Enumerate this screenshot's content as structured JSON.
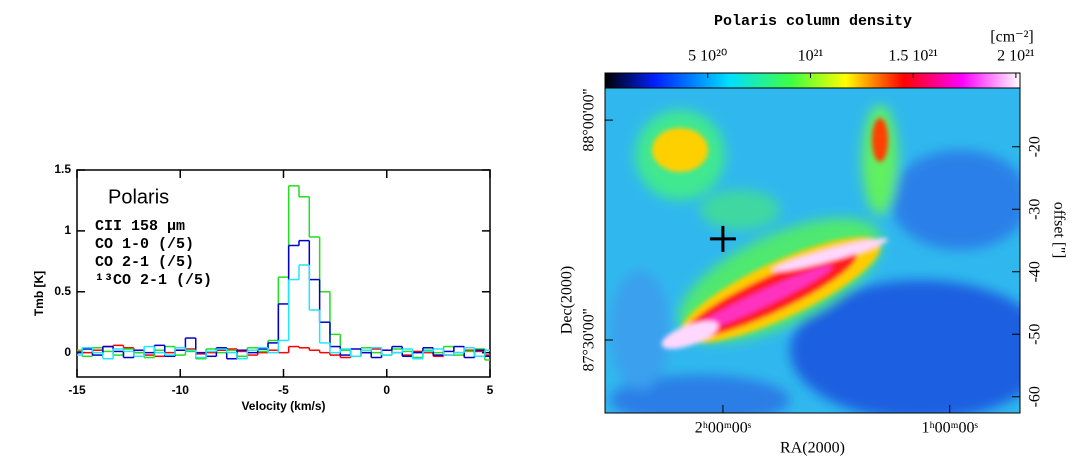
{
  "chart_data": [
    {
      "type": "step",
      "legend_title": "Polaris",
      "xlabel": "Velocity (km/s)",
      "ylabel": "Tmb [K]",
      "x": [
        -15,
        -14.5,
        -14,
        -13.5,
        -13,
        -12.5,
        -12,
        -11.5,
        -11,
        -10.5,
        -10,
        -9.5,
        -9,
        -8.5,
        -8,
        -7.5,
        -7,
        -6.5,
        -6,
        -5.5,
        -5,
        -4.5,
        -4,
        -3.5,
        -3,
        -2.5,
        -2,
        -1.5,
        -1,
        -0.5,
        0,
        0.5,
        1,
        1.5,
        2,
        2.5,
        3,
        3.5,
        4,
        4.5,
        5
      ],
      "series": [
        {
          "name": "CII 158 μm",
          "color": "#ff0000",
          "values": [
            0.01,
            0.0,
            0.02,
            0.05,
            0.06,
            0.04,
            0.0,
            -0.02,
            -0.03,
            0.0,
            0.02,
            0.03,
            -0.01,
            0.0,
            0.02,
            0.03,
            0.01,
            -0.02,
            0.0,
            0.02,
            0.0,
            0.05,
            0.04,
            0.02,
            0.0,
            -0.02,
            -0.04,
            -0.03,
            0.0,
            0.03,
            0.02,
            0.0,
            -0.02,
            0.01,
            0.0,
            -0.03,
            -0.02,
            0.0,
            0.02,
            0.01,
            -0.02
          ]
        },
        {
          "name": "CO 1-0 (/5)",
          "color": "#22dd22",
          "values": [
            0.02,
            -0.03,
            0.04,
            0.01,
            -0.02,
            0.03,
            0.0,
            -0.04,
            0.02,
            0.05,
            -0.02,
            0.01,
            -0.05,
            0.03,
            0.0,
            0.02,
            -0.03,
            0.04,
            0.01,
            0.1,
            0.62,
            1.37,
            1.28,
            0.95,
            0.5,
            0.15,
            0.02,
            -0.03,
            0.04,
            0.0,
            -0.02,
            0.03,
            0.01,
            -0.04,
            0.02,
            0.0,
            0.05,
            -0.02,
            0.01,
            0.03,
            -0.06
          ]
        },
        {
          "name": "CO 2-1 (/5)",
          "color": "#0000cc",
          "values": [
            0.0,
            0.03,
            -0.02,
            0.05,
            0.01,
            -0.04,
            0.02,
            0.0,
            0.06,
            -0.03,
            0.02,
            0.12,
            0.0,
            -0.03,
            0.04,
            -0.05,
            0.02,
            0.0,
            0.03,
            0.08,
            0.4,
            0.88,
            0.92,
            0.6,
            0.25,
            0.05,
            -0.02,
            0.03,
            0.0,
            -0.04,
            0.02,
            0.05,
            -0.03,
            0.0,
            0.04,
            -0.02,
            0.01,
            0.05,
            -0.04,
            0.02,
            -0.03
          ]
        },
        {
          "name": "¹³CO 2-1 (/5)",
          "color": "#22e5ff",
          "values": [
            -0.02,
            0.04,
            0.0,
            -0.05,
            0.03,
            0.01,
            -0.03,
            0.05,
            0.0,
            -0.02,
            0.04,
            0.02,
            -0.04,
            0.01,
            0.03,
            0.0,
            -0.05,
            0.02,
            0.04,
            0.0,
            0.1,
            0.6,
            0.72,
            0.35,
            0.08,
            0.0,
            0.03,
            -0.03,
            0.02,
            0.04,
            -0.02,
            0.0,
            0.03,
            -0.05,
            0.01,
            0.03,
            -0.02,
            0.0,
            0.04,
            -0.03,
            0.02
          ]
        }
      ],
      "xlim": [
        -15,
        5
      ],
      "xticks": [
        -15,
        -10,
        -5,
        0,
        5
      ],
      "ylim": [
        -0.2,
        1.5
      ],
      "yticks": [
        0,
        0.5,
        1,
        1.5
      ]
    },
    {
      "type": "image",
      "title": "Polaris column density",
      "colorbar_label": "[cm⁻²]",
      "clim": [
        0,
        2.02e+21
      ],
      "cticks": [
        {
          "value": 5e+20,
          "label": "5 10²⁰"
        },
        {
          "value": 1e+21,
          "label": "10²¹"
        },
        {
          "value": 1.5e+21,
          "label": "1.5 10²¹"
        },
        {
          "value": 2e+21,
          "label": "2 10²¹"
        }
      ],
      "xlabel": "RA(2000)",
      "ylabel": "Dec(2000)",
      "y2label": "offset ['']",
      "xlim": [
        2.52,
        0.69
      ],
      "xticks": [
        {
          "value": 2,
          "label": "2ʰ00ᵐ00ˢ"
        },
        {
          "value": 1,
          "label": "1ʰ00ᵐ00ˢ"
        }
      ],
      "ylim": [
        87.334,
        88.073
      ],
      "yticks": [
        {
          "value": 88,
          "label": "88°00'00''"
        },
        {
          "value": 87.5,
          "label": "87°30'00''"
        }
      ],
      "y2lim": [
        -62.6,
        -10.6
      ],
      "y2ticks": [
        -20,
        -30,
        -40,
        -50,
        -60
      ],
      "marker": {
        "x": 2.0,
        "y": 87.73
      }
    }
  ]
}
